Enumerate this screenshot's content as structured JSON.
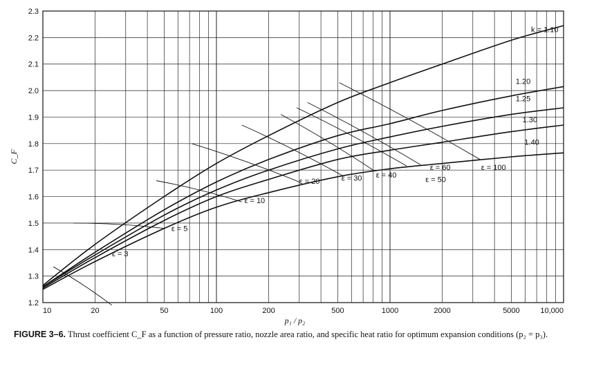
{
  "chart_data": {
    "type": "line",
    "title": "",
    "xlabel": "p₁ / p₂",
    "ylabel": "C_F",
    "xscale": "log",
    "xlim": [
      10,
      10000
    ],
    "ylim": [
      1.2,
      2.3
    ],
    "grid": true,
    "x_tick_labels": [
      "10",
      "20",
      "50",
      "100",
      "200",
      "500",
      "1000",
      "2000",
      "5000",
      "10,000"
    ],
    "x_tick_values": [
      10,
      20,
      50,
      100,
      200,
      500,
      1000,
      2000,
      5000,
      10000
    ],
    "y_tick_labels": [
      "1.2",
      "1.3",
      "1.4",
      "1.5",
      "1.6",
      "1.7",
      "1.8",
      "1.9",
      "2.0",
      "2.1",
      "2.2",
      "2.3"
    ],
    "y_tick_values": [
      1.2,
      1.3,
      1.4,
      1.5,
      1.6,
      1.7,
      1.8,
      1.9,
      2.0,
      2.1,
      2.2,
      2.3
    ],
    "series": [
      {
        "name": "k = 1.10",
        "x": [
          10,
          20,
          50,
          100,
          200,
          500,
          1000,
          2000,
          5000,
          10000
        ],
        "y": [
          1.265,
          1.42,
          1.6,
          1.725,
          1.83,
          1.955,
          2.03,
          2.1,
          2.19,
          2.245
        ]
      },
      {
        "name": "1.20",
        "x": [
          10,
          20,
          50,
          100,
          200,
          500,
          1000,
          2000,
          5000,
          10000
        ],
        "y": [
          1.26,
          1.39,
          1.55,
          1.655,
          1.74,
          1.83,
          1.875,
          1.925,
          1.98,
          2.015
        ]
      },
      {
        "name": "1.25",
        "x": [
          10,
          20,
          50,
          100,
          200,
          500,
          1000,
          2000,
          5000,
          10000
        ],
        "y": [
          1.26,
          1.38,
          1.53,
          1.625,
          1.7,
          1.78,
          1.825,
          1.865,
          1.91,
          1.935
        ]
      },
      {
        "name": "1.30",
        "x": [
          10,
          20,
          50,
          100,
          200,
          500,
          1000,
          2000,
          5000,
          10000
        ],
        "y": [
          1.255,
          1.37,
          1.51,
          1.6,
          1.665,
          1.74,
          1.775,
          1.805,
          1.845,
          1.87
        ]
      },
      {
        "name": "1.40",
        "x": [
          10,
          20,
          50,
          100,
          200,
          500,
          1000,
          2000,
          5000,
          10000
        ],
        "y": [
          1.25,
          1.355,
          1.48,
          1.56,
          1.615,
          1.675,
          1.705,
          1.725,
          1.75,
          1.765
        ]
      }
    ],
    "epsilon_lines": [
      {
        "label": "ε = 3",
        "x": [
          11.5,
          25
        ],
        "y": [
          1.335,
          1.19
        ]
      },
      {
        "label": "ε = 5",
        "x": [
          15,
          50
        ],
        "y": [
          1.5,
          1.48
        ]
      },
      {
        "label": "ε = 10",
        "x": [
          45,
          140
        ],
        "y": [
          1.66,
          1.58
        ]
      },
      {
        "label": "ε = 20",
        "x": [
          72,
          300
        ],
        "y": [
          1.8,
          1.655
        ]
      },
      {
        "label": "ε = 30",
        "x": [
          140,
          530
        ],
        "y": [
          1.87,
          1.68
        ]
      },
      {
        "label": "ε = 40",
        "x": [
          235,
          800
        ],
        "y": [
          1.91,
          1.7
        ]
      },
      {
        "label": "ε = 50",
        "x": [
          290,
          1250
        ],
        "y": [
          1.935,
          1.715
        ]
      },
      {
        "label": "ε = 60",
        "x": [
          335,
          1500
        ],
        "y": [
          1.955,
          1.72
        ]
      },
      {
        "label": "ε = 100",
        "x": [
          510,
          3300
        ],
        "y": [
          2.03,
          1.74
        ]
      }
    ],
    "curve_labels": [
      {
        "text": "k = 1.10",
        "x": 6500,
        "y": 2.22
      },
      {
        "text": "1.20",
        "x": 5300,
        "y": 2.025
      },
      {
        "text": "1.25",
        "x": 5300,
        "y": 1.96
      },
      {
        "text": "1.30",
        "x": 5800,
        "y": 1.88
      },
      {
        "text": "1.40",
        "x": 5950,
        "y": 1.795
      },
      {
        "text": "ε = 3",
        "x": 25,
        "y": 1.375
      },
      {
        "text": "ε = 5",
        "x": 55,
        "y": 1.47
      },
      {
        "text": "ε = 10",
        "x": 145,
        "y": 1.575
      },
      {
        "text": "ε = 20",
        "x": 300,
        "y": 1.648
      },
      {
        "text": "ε = 30",
        "x": 525,
        "y": 1.66
      },
      {
        "text": "ε = 40",
        "x": 830,
        "y": 1.672
      },
      {
        "text": "ε = 50",
        "x": 1600,
        "y": 1.655
      },
      {
        "text": "ε = 60",
        "x": 1700,
        "y": 1.7
      },
      {
        "text": "ε = 100",
        "x": 3350,
        "y": 1.7
      }
    ]
  },
  "caption": {
    "figure_number": "FIGURE 3–6.",
    "text": "Thrust coefficient C_F as a function of pressure ratio, nozzle area ratio, and specific heat ratio for optimum expansion conditions (p₂ = p₃)."
  },
  "colors": {
    "line": "#111111",
    "grid": "#222222",
    "background": "#ffffff"
  }
}
